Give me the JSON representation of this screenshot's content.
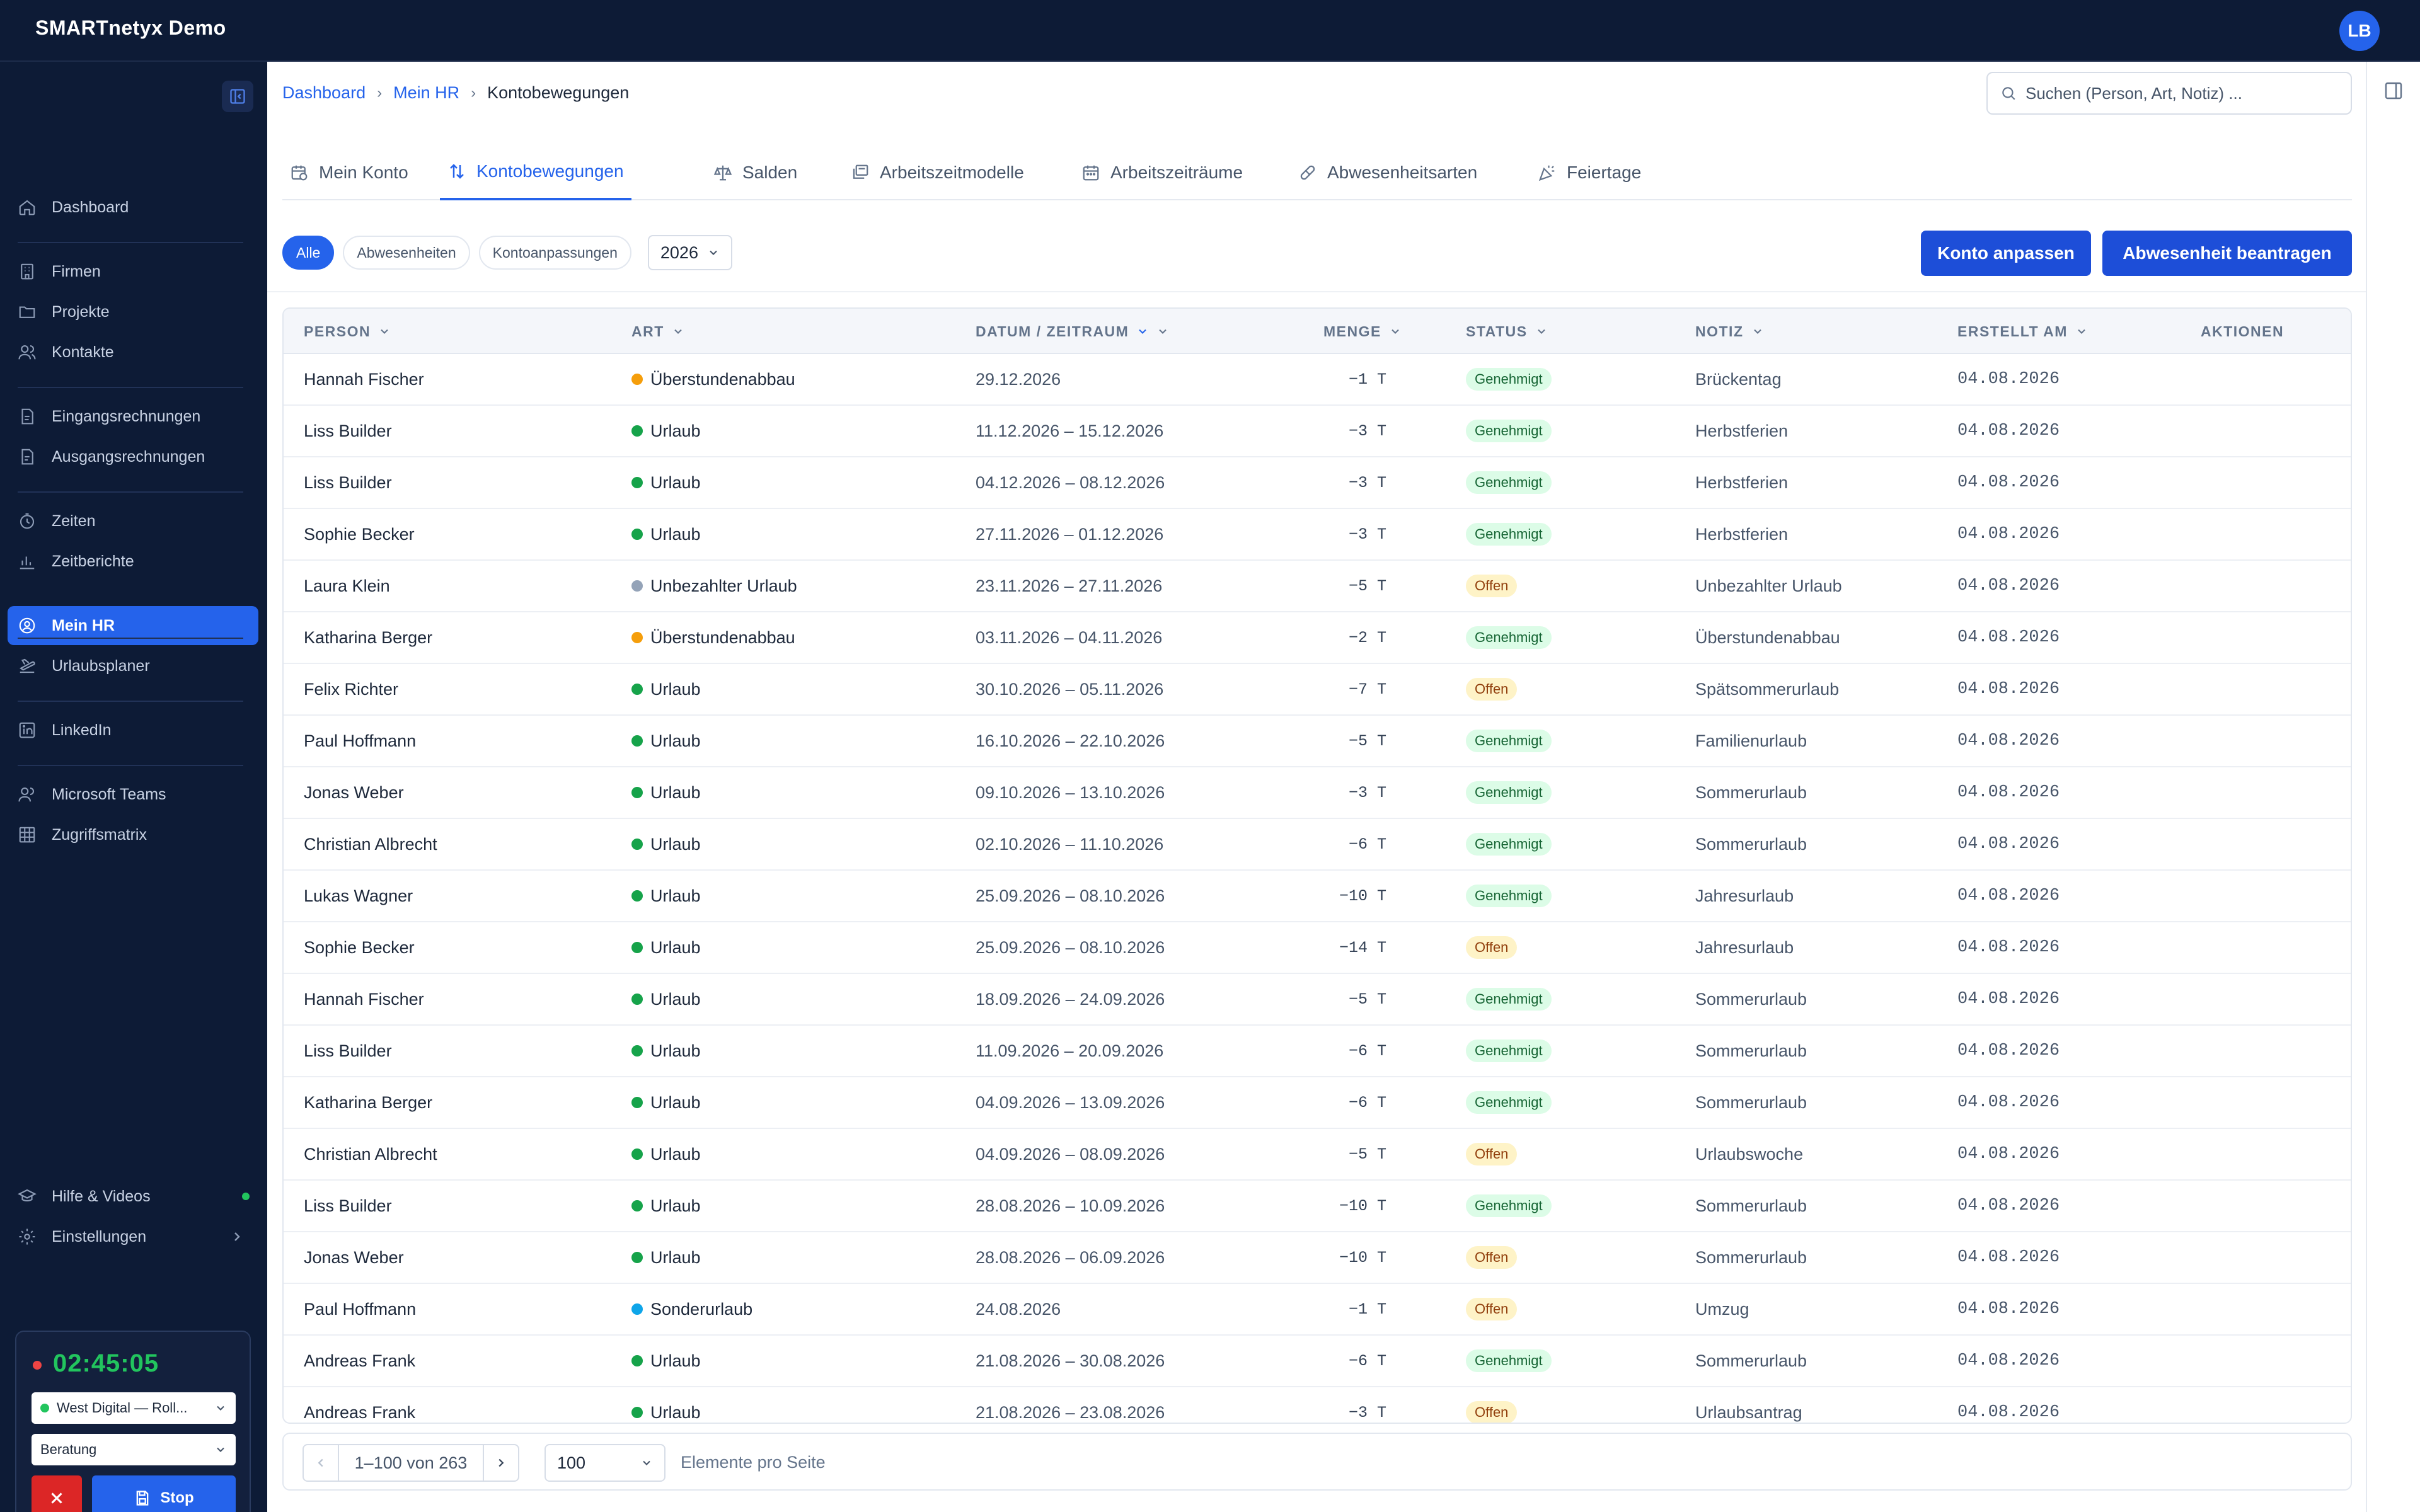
{
  "app": {
    "title": "SMARTnetyx Demo",
    "user_initials": "LB"
  },
  "sidebar": {
    "items": [
      {
        "label": "Dashboard",
        "icon": "home-icon"
      },
      {
        "label": "Firmen",
        "icon": "building-icon"
      },
      {
        "label": "Projekte",
        "icon": "folder-icon"
      },
      {
        "label": "Kontakte",
        "icon": "users-icon"
      },
      {
        "label": "Eingangsrechnungen",
        "icon": "invoice-in-icon"
      },
      {
        "label": "Ausgangsrechnungen",
        "icon": "invoice-out-icon"
      },
      {
        "label": "Zeiten",
        "icon": "clock-icon"
      },
      {
        "label": "Zeitberichte",
        "icon": "chart-icon"
      },
      {
        "label": "Mein HR",
        "icon": "user-circle-icon",
        "active": true
      },
      {
        "label": "Urlaubsplaner",
        "icon": "plane-icon"
      },
      {
        "label": "LinkedIn",
        "icon": "linkedin-icon"
      },
      {
        "label": "Microsoft Teams",
        "icon": "teams-icon"
      },
      {
        "label": "Zugriffsmatrix",
        "icon": "grid-icon"
      }
    ],
    "bottom": [
      {
        "label": "Hilfe & Videos",
        "icon": "graduation-cap-icon"
      },
      {
        "label": "Einstellungen",
        "icon": "gear-icon"
      }
    ]
  },
  "timer": {
    "time": "02:45:05",
    "project": "West Digital — Roll...",
    "activity": "Beratung",
    "stop_label": "Stop"
  },
  "breadcrumb": {
    "items": [
      "Dashboard",
      "Mein HR"
    ],
    "current": "Kontobewegungen"
  },
  "search": {
    "placeholder": "Suchen (Person, Art, Notiz) ..."
  },
  "tabs": [
    {
      "label": "Mein Konto"
    },
    {
      "label": "Kontobewegungen",
      "active": true
    },
    {
      "label": "Salden"
    },
    {
      "label": "Arbeitszeitmodelle"
    },
    {
      "label": "Arbeitszeiträume"
    },
    {
      "label": "Abwesenheitsarten"
    },
    {
      "label": "Feiertage"
    }
  ],
  "filters": {
    "chips": [
      "Alle",
      "Abwesenheiten",
      "Kontoanpassungen"
    ],
    "year": "2026"
  },
  "actions": {
    "adjust": "Konto anpassen",
    "request": "Abwesenheit beantragen"
  },
  "table": {
    "headers": {
      "person": "PERSON",
      "art": "ART",
      "date": "DATUM / ZEITRAUM",
      "menge": "MENGE",
      "status": "STATUS",
      "note": "NOTIZ",
      "created": "ERSTELLT AM",
      "actions": "AKTIONEN"
    },
    "colors": {
      "orange": "#f59e0b",
      "green": "#16a34a",
      "gray": "#94a3b8",
      "blue": "#0ea5e9"
    },
    "rows": [
      {
        "person": "Hannah Fischer",
        "art": "Überstundenabbau",
        "color": "orange",
        "date": "29.12.2026",
        "menge": "−1 T",
        "status": "Genehmigt",
        "note": "Brückentag",
        "created": "04.08.2026"
      },
      {
        "person": "Liss Builder",
        "art": "Urlaub",
        "color": "green",
        "date": "11.12.2026 – 15.12.2026",
        "menge": "−3 T",
        "status": "Genehmigt",
        "note": "Herbstferien",
        "created": "04.08.2026"
      },
      {
        "person": "Liss Builder",
        "art": "Urlaub",
        "color": "green",
        "date": "04.12.2026 – 08.12.2026",
        "menge": "−3 T",
        "status": "Genehmigt",
        "note": "Herbstferien",
        "created": "04.08.2026"
      },
      {
        "person": "Sophie Becker",
        "art": "Urlaub",
        "color": "green",
        "date": "27.11.2026 – 01.12.2026",
        "menge": "−3 T",
        "status": "Genehmigt",
        "note": "Herbstferien",
        "created": "04.08.2026"
      },
      {
        "person": "Laura Klein",
        "art": "Unbezahlter Urlaub",
        "color": "gray",
        "date": "23.11.2026 – 27.11.2026",
        "menge": "−5 T",
        "status": "Offen",
        "note": "Unbezahlter Urlaub",
        "created": "04.08.2026"
      },
      {
        "person": "Katharina Berger",
        "art": "Überstundenabbau",
        "color": "orange",
        "date": "03.11.2026 – 04.11.2026",
        "menge": "−2 T",
        "status": "Genehmigt",
        "note": "Überstundenabbau",
        "created": "04.08.2026"
      },
      {
        "person": "Felix Richter",
        "art": "Urlaub",
        "color": "green",
        "date": "30.10.2026 – 05.11.2026",
        "menge": "−7 T",
        "status": "Offen",
        "note": "Spätsommerurlaub",
        "created": "04.08.2026"
      },
      {
        "person": "Paul Hoffmann",
        "art": "Urlaub",
        "color": "green",
        "date": "16.10.2026 – 22.10.2026",
        "menge": "−5 T",
        "status": "Genehmigt",
        "note": "Familienurlaub",
        "created": "04.08.2026"
      },
      {
        "person": "Jonas Weber",
        "art": "Urlaub",
        "color": "green",
        "date": "09.10.2026 – 13.10.2026",
        "menge": "−3 T",
        "status": "Genehmigt",
        "note": "Sommerurlaub",
        "created": "04.08.2026"
      },
      {
        "person": "Christian Albrecht",
        "art": "Urlaub",
        "color": "green",
        "date": "02.10.2026 – 11.10.2026",
        "menge": "−6 T",
        "status": "Genehmigt",
        "note": "Sommerurlaub",
        "created": "04.08.2026"
      },
      {
        "person": "Lukas Wagner",
        "art": "Urlaub",
        "color": "green",
        "date": "25.09.2026 – 08.10.2026",
        "menge": "−10 T",
        "status": "Genehmigt",
        "note": "Jahresurlaub",
        "created": "04.08.2026"
      },
      {
        "person": "Sophie Becker",
        "art": "Urlaub",
        "color": "green",
        "date": "25.09.2026 – 08.10.2026",
        "menge": "−14 T",
        "status": "Offen",
        "note": "Jahresurlaub",
        "created": "04.08.2026"
      },
      {
        "person": "Hannah Fischer",
        "art": "Urlaub",
        "color": "green",
        "date": "18.09.2026 – 24.09.2026",
        "menge": "−5 T",
        "status": "Genehmigt",
        "note": "Sommerurlaub",
        "created": "04.08.2026"
      },
      {
        "person": "Liss Builder",
        "art": "Urlaub",
        "color": "green",
        "date": "11.09.2026 – 20.09.2026",
        "menge": "−6 T",
        "status": "Genehmigt",
        "note": "Sommerurlaub",
        "created": "04.08.2026"
      },
      {
        "person": "Katharina Berger",
        "art": "Urlaub",
        "color": "green",
        "date": "04.09.2026 – 13.09.2026",
        "menge": "−6 T",
        "status": "Genehmigt",
        "note": "Sommerurlaub",
        "created": "04.08.2026"
      },
      {
        "person": "Christian Albrecht",
        "art": "Urlaub",
        "color": "green",
        "date": "04.09.2026 – 08.09.2026",
        "menge": "−5 T",
        "status": "Offen",
        "note": "Urlaubswoche",
        "created": "04.08.2026"
      },
      {
        "person": "Liss Builder",
        "art": "Urlaub",
        "color": "green",
        "date": "28.08.2026 – 10.09.2026",
        "menge": "−10 T",
        "status": "Genehmigt",
        "note": "Sommerurlaub",
        "created": "04.08.2026"
      },
      {
        "person": "Jonas Weber",
        "art": "Urlaub",
        "color": "green",
        "date": "28.08.2026 – 06.09.2026",
        "menge": "−10 T",
        "status": "Offen",
        "note": "Sommerurlaub",
        "created": "04.08.2026"
      },
      {
        "person": "Paul Hoffmann",
        "art": "Sonderurlaub",
        "color": "blue",
        "date": "24.08.2026",
        "menge": "−1 T",
        "status": "Offen",
        "note": "Umzug",
        "created": "04.08.2026"
      },
      {
        "person": "Andreas Frank",
        "art": "Urlaub",
        "color": "green",
        "date": "21.08.2026 – 30.08.2026",
        "menge": "−6 T",
        "status": "Genehmigt",
        "note": "Sommerurlaub",
        "created": "04.08.2026"
      },
      {
        "person": "Andreas Frank",
        "art": "Urlaub",
        "color": "green",
        "date": "21.08.2026 – 23.08.2026",
        "menge": "−3 T",
        "status": "Offen",
        "note": "Urlaubsantrag",
        "created": "04.08.2026"
      }
    ]
  },
  "pagination": {
    "range": "1–100 von 263",
    "per_page": "100",
    "per_page_label": "Elemente pro Seite"
  }
}
